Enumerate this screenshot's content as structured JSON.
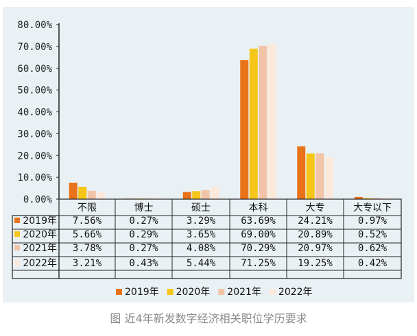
{
  "caption": "图 近4年新发数字经济相关职位学历要求",
  "chart_data": {
    "type": "bar",
    "categories": [
      "不限",
      "博士",
      "硕士",
      "本科",
      "大专",
      "大专以下"
    ],
    "series": [
      {
        "name": "2019年",
        "color": "#e8731a",
        "labels": [
          "7.56%",
          "0.27%",
          "3.29%",
          "63.69%",
          "24.21%",
          "0.97%"
        ],
        "values": [
          7.56,
          0.27,
          3.29,
          63.69,
          24.21,
          0.97
        ]
      },
      {
        "name": "2020年",
        "color": "#f5c518",
        "labels": [
          "5.66%",
          "0.29%",
          "3.65%",
          "69.00%",
          "20.89%",
          "0.52%"
        ],
        "values": [
          5.66,
          0.29,
          3.65,
          69.0,
          20.89,
          0.52
        ]
      },
      {
        "name": "2021年",
        "color": "#f1c4a8",
        "labels": [
          "3.78%",
          "0.27%",
          "4.08%",
          "70.29%",
          "20.97%",
          "0.62%"
        ],
        "values": [
          3.78,
          0.27,
          4.08,
          70.29,
          20.97,
          0.62
        ]
      },
      {
        "name": "2022年",
        "color": "#fbe9dc",
        "labels": [
          "3.21%",
          "0.43%",
          "5.44%",
          "71.25%",
          "19.25%",
          "0.42%"
        ],
        "values": [
          3.21,
          0.43,
          5.44,
          71.25,
          19.25,
          0.42
        ]
      }
    ],
    "yticks": [
      "80.00%",
      "70.00%",
      "60.00%",
      "50.00%",
      "40.00%",
      "30.00%",
      "20.00%",
      "10.00%",
      "0.00%"
    ],
    "ylim": [
      0,
      80
    ],
    "table": true,
    "legend": "bottom"
  }
}
